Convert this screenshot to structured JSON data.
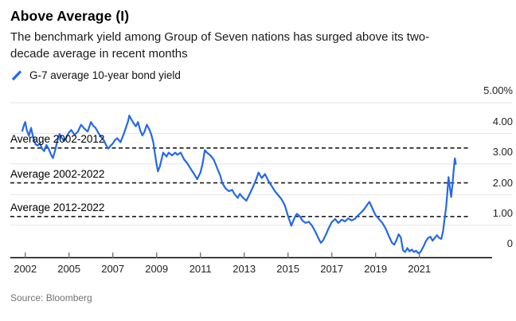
{
  "header": {
    "title": "Above Average (I)",
    "subtitle_line1": "The benchmark yield among Group of Seven nations has surged above its two-",
    "subtitle_line2": "decade average in recent months"
  },
  "legend": {
    "label": "G-7 average 10-year bond yield"
  },
  "source": "Source: Bloomberg",
  "colors": {
    "line": "#2469e6",
    "grid": "#e8e6e2",
    "dashed": "#1a1a1a",
    "axis": "#000000",
    "tick": "#666666"
  },
  "chart_data": {
    "type": "line",
    "title": "Above Average (I)",
    "series_name": "G-7 average 10-year bond yield",
    "unit": "%",
    "ylim": [
      0,
      5
    ],
    "grid": "horizontal",
    "legend_position": "top-left",
    "yticks": [
      {
        "value": 5,
        "label": "5.00%"
      },
      {
        "value": 4,
        "label": "4.00"
      },
      {
        "value": 3,
        "label": "3.00"
      },
      {
        "value": 2,
        "label": "2.00"
      },
      {
        "value": 1,
        "label": "1.00"
      },
      {
        "value": 0,
        "label": "0"
      }
    ],
    "xtick_labels": [
      "2002",
      "2005",
      "2007",
      "2009",
      "2011",
      "2013",
      "2015",
      "2017",
      "2019",
      "2021"
    ],
    "reference_lines": [
      {
        "label": "Average 2002-2012",
        "value": 3.52
      },
      {
        "label": "Average 2002-2022",
        "value": 2.38
      },
      {
        "label": "Average 2012-2022",
        "value": 1.28
      }
    ],
    "points": [
      [
        2001.8,
        4.08
      ],
      [
        2001.9,
        4.25
      ],
      [
        2002.0,
        4.37
      ],
      [
        2002.1,
        4.12
      ],
      [
        2002.25,
        3.92
      ],
      [
        2002.4,
        4.18
      ],
      [
        2002.55,
        3.85
      ],
      [
        2002.7,
        3.65
      ],
      [
        2002.85,
        3.6
      ],
      [
        2003.0,
        3.68
      ],
      [
        2003.15,
        3.5
      ],
      [
        2003.3,
        3.42
      ],
      [
        2003.45,
        3.62
      ],
      [
        2003.6,
        3.5
      ],
      [
        2003.75,
        3.32
      ],
      [
        2003.9,
        3.19
      ],
      [
        2004.05,
        3.45
      ],
      [
        2004.2,
        3.75
      ],
      [
        2004.35,
        3.98
      ],
      [
        2004.5,
        3.85
      ],
      [
        2004.65,
        3.75
      ],
      [
        2004.8,
        3.85
      ],
      [
        2004.95,
        4.0
      ],
      [
        2005.1,
        4.11
      ],
      [
        2005.25,
        3.95
      ],
      [
        2005.4,
        4.05
      ],
      [
        2005.55,
        4.28
      ],
      [
        2005.7,
        4.15
      ],
      [
        2005.85,
        4.06
      ],
      [
        2006.0,
        4.37
      ],
      [
        2006.1,
        4.25
      ],
      [
        2006.2,
        4.19
      ],
      [
        2006.35,
        4.0
      ],
      [
        2006.45,
        3.89
      ],
      [
        2006.6,
        3.76
      ],
      [
        2006.7,
        3.6
      ],
      [
        2006.8,
        3.5
      ],
      [
        2006.9,
        3.6
      ],
      [
        2007.0,
        3.67
      ],
      [
        2007.1,
        3.78
      ],
      [
        2007.2,
        3.84
      ],
      [
        2007.35,
        3.71
      ],
      [
        2007.5,
        3.98
      ],
      [
        2007.6,
        4.19
      ],
      [
        2007.7,
        4.41
      ],
      [
        2007.75,
        4.58
      ],
      [
        2007.85,
        4.45
      ],
      [
        2007.95,
        4.33
      ],
      [
        2008.05,
        4.23
      ],
      [
        2008.15,
        4.37
      ],
      [
        2008.25,
        4.1
      ],
      [
        2008.35,
        3.93
      ],
      [
        2008.45,
        4.06
      ],
      [
        2008.55,
        4.28
      ],
      [
        2008.65,
        4.15
      ],
      [
        2008.75,
        3.98
      ],
      [
        2008.85,
        3.7
      ],
      [
        2008.92,
        3.35
      ],
      [
        2009.0,
        2.98
      ],
      [
        2009.06,
        2.76
      ],
      [
        2009.15,
        2.92
      ],
      [
        2009.3,
        3.37
      ],
      [
        2009.45,
        3.24
      ],
      [
        2009.55,
        3.37
      ],
      [
        2009.7,
        3.28
      ],
      [
        2009.85,
        3.37
      ],
      [
        2009.95,
        3.3
      ],
      [
        2010.1,
        3.37
      ],
      [
        2010.25,
        3.15
      ],
      [
        2010.4,
        3.02
      ],
      [
        2010.55,
        2.85
      ],
      [
        2010.7,
        2.68
      ],
      [
        2010.85,
        2.5
      ],
      [
        2011.0,
        2.72
      ],
      [
        2011.1,
        3.0
      ],
      [
        2011.2,
        3.45
      ],
      [
        2011.3,
        3.37
      ],
      [
        2011.45,
        3.28
      ],
      [
        2011.6,
        3.15
      ],
      [
        2011.7,
        2.98
      ],
      [
        2011.8,
        2.8
      ],
      [
        2011.9,
        2.63
      ],
      [
        2012.0,
        2.37
      ],
      [
        2012.15,
        2.2
      ],
      [
        2012.3,
        2.11
      ],
      [
        2012.45,
        2.15
      ],
      [
        2012.55,
        2.02
      ],
      [
        2012.7,
        1.89
      ],
      [
        2012.8,
        2.02
      ],
      [
        2012.95,
        1.89
      ],
      [
        2013.1,
        1.8
      ],
      [
        2013.25,
        2.02
      ],
      [
        2013.4,
        2.25
      ],
      [
        2013.55,
        2.5
      ],
      [
        2013.65,
        2.72
      ],
      [
        2013.8,
        2.54
      ],
      [
        2013.95,
        2.67
      ],
      [
        2014.1,
        2.45
      ],
      [
        2014.25,
        2.28
      ],
      [
        2014.4,
        2.11
      ],
      [
        2014.55,
        1.98
      ],
      [
        2014.7,
        1.85
      ],
      [
        2014.85,
        1.65
      ],
      [
        2015.0,
        1.3
      ],
      [
        2015.15,
        0.98
      ],
      [
        2015.3,
        1.24
      ],
      [
        2015.4,
        1.37
      ],
      [
        2015.55,
        1.28
      ],
      [
        2015.65,
        1.15
      ],
      [
        2015.8,
        1.07
      ],
      [
        2015.95,
        1.11
      ],
      [
        2016.1,
        0.98
      ],
      [
        2016.25,
        0.78
      ],
      [
        2016.4,
        0.55
      ],
      [
        2016.5,
        0.42
      ],
      [
        2016.6,
        0.5
      ],
      [
        2016.75,
        0.72
      ],
      [
        2016.85,
        0.89
      ],
      [
        2017.0,
        1.1
      ],
      [
        2017.15,
        1.2
      ],
      [
        2017.3,
        1.07
      ],
      [
        2017.45,
        1.18
      ],
      [
        2017.6,
        1.12
      ],
      [
        2017.75,
        1.22
      ],
      [
        2017.9,
        1.15
      ],
      [
        2018.05,
        1.2
      ],
      [
        2018.2,
        1.32
      ],
      [
        2018.35,
        1.42
      ],
      [
        2018.5,
        1.54
      ],
      [
        2018.65,
        1.7
      ],
      [
        2018.72,
        1.76
      ],
      [
        2018.85,
        1.55
      ],
      [
        2019.0,
        1.32
      ],
      [
        2019.15,
        1.2
      ],
      [
        2019.3,
        1.08
      ],
      [
        2019.45,
        0.9
      ],
      [
        2019.6,
        0.65
      ],
      [
        2019.75,
        0.42
      ],
      [
        2019.85,
        0.36
      ],
      [
        2019.95,
        0.5
      ],
      [
        2020.05,
        0.7
      ],
      [
        2020.15,
        0.6
      ],
      [
        2020.25,
        0.18
      ],
      [
        2020.35,
        0.12
      ],
      [
        2020.45,
        0.25
      ],
      [
        2020.55,
        0.14
      ],
      [
        2020.65,
        0.2
      ],
      [
        2020.75,
        0.12
      ],
      [
        2020.85,
        0.16
      ],
      [
        2020.95,
        0.08
      ],
      [
        2021.05,
        0.12
      ],
      [
        2021.2,
        0.32
      ],
      [
        2021.3,
        0.48
      ],
      [
        2021.4,
        0.58
      ],
      [
        2021.5,
        0.62
      ],
      [
        2021.6,
        0.49
      ],
      [
        2021.7,
        0.58
      ],
      [
        2021.8,
        0.67
      ],
      [
        2021.9,
        0.58
      ],
      [
        2022.0,
        0.55
      ],
      [
        2022.08,
        0.8
      ],
      [
        2022.15,
        1.2
      ],
      [
        2022.22,
        1.6
      ],
      [
        2022.28,
        2.1
      ],
      [
        2022.33,
        2.57
      ],
      [
        2022.4,
        2.18
      ],
      [
        2022.45,
        1.92
      ],
      [
        2022.52,
        2.4
      ],
      [
        2022.57,
        2.85
      ],
      [
        2022.62,
        3.18
      ],
      [
        2022.66,
        3.0
      ]
    ]
  }
}
